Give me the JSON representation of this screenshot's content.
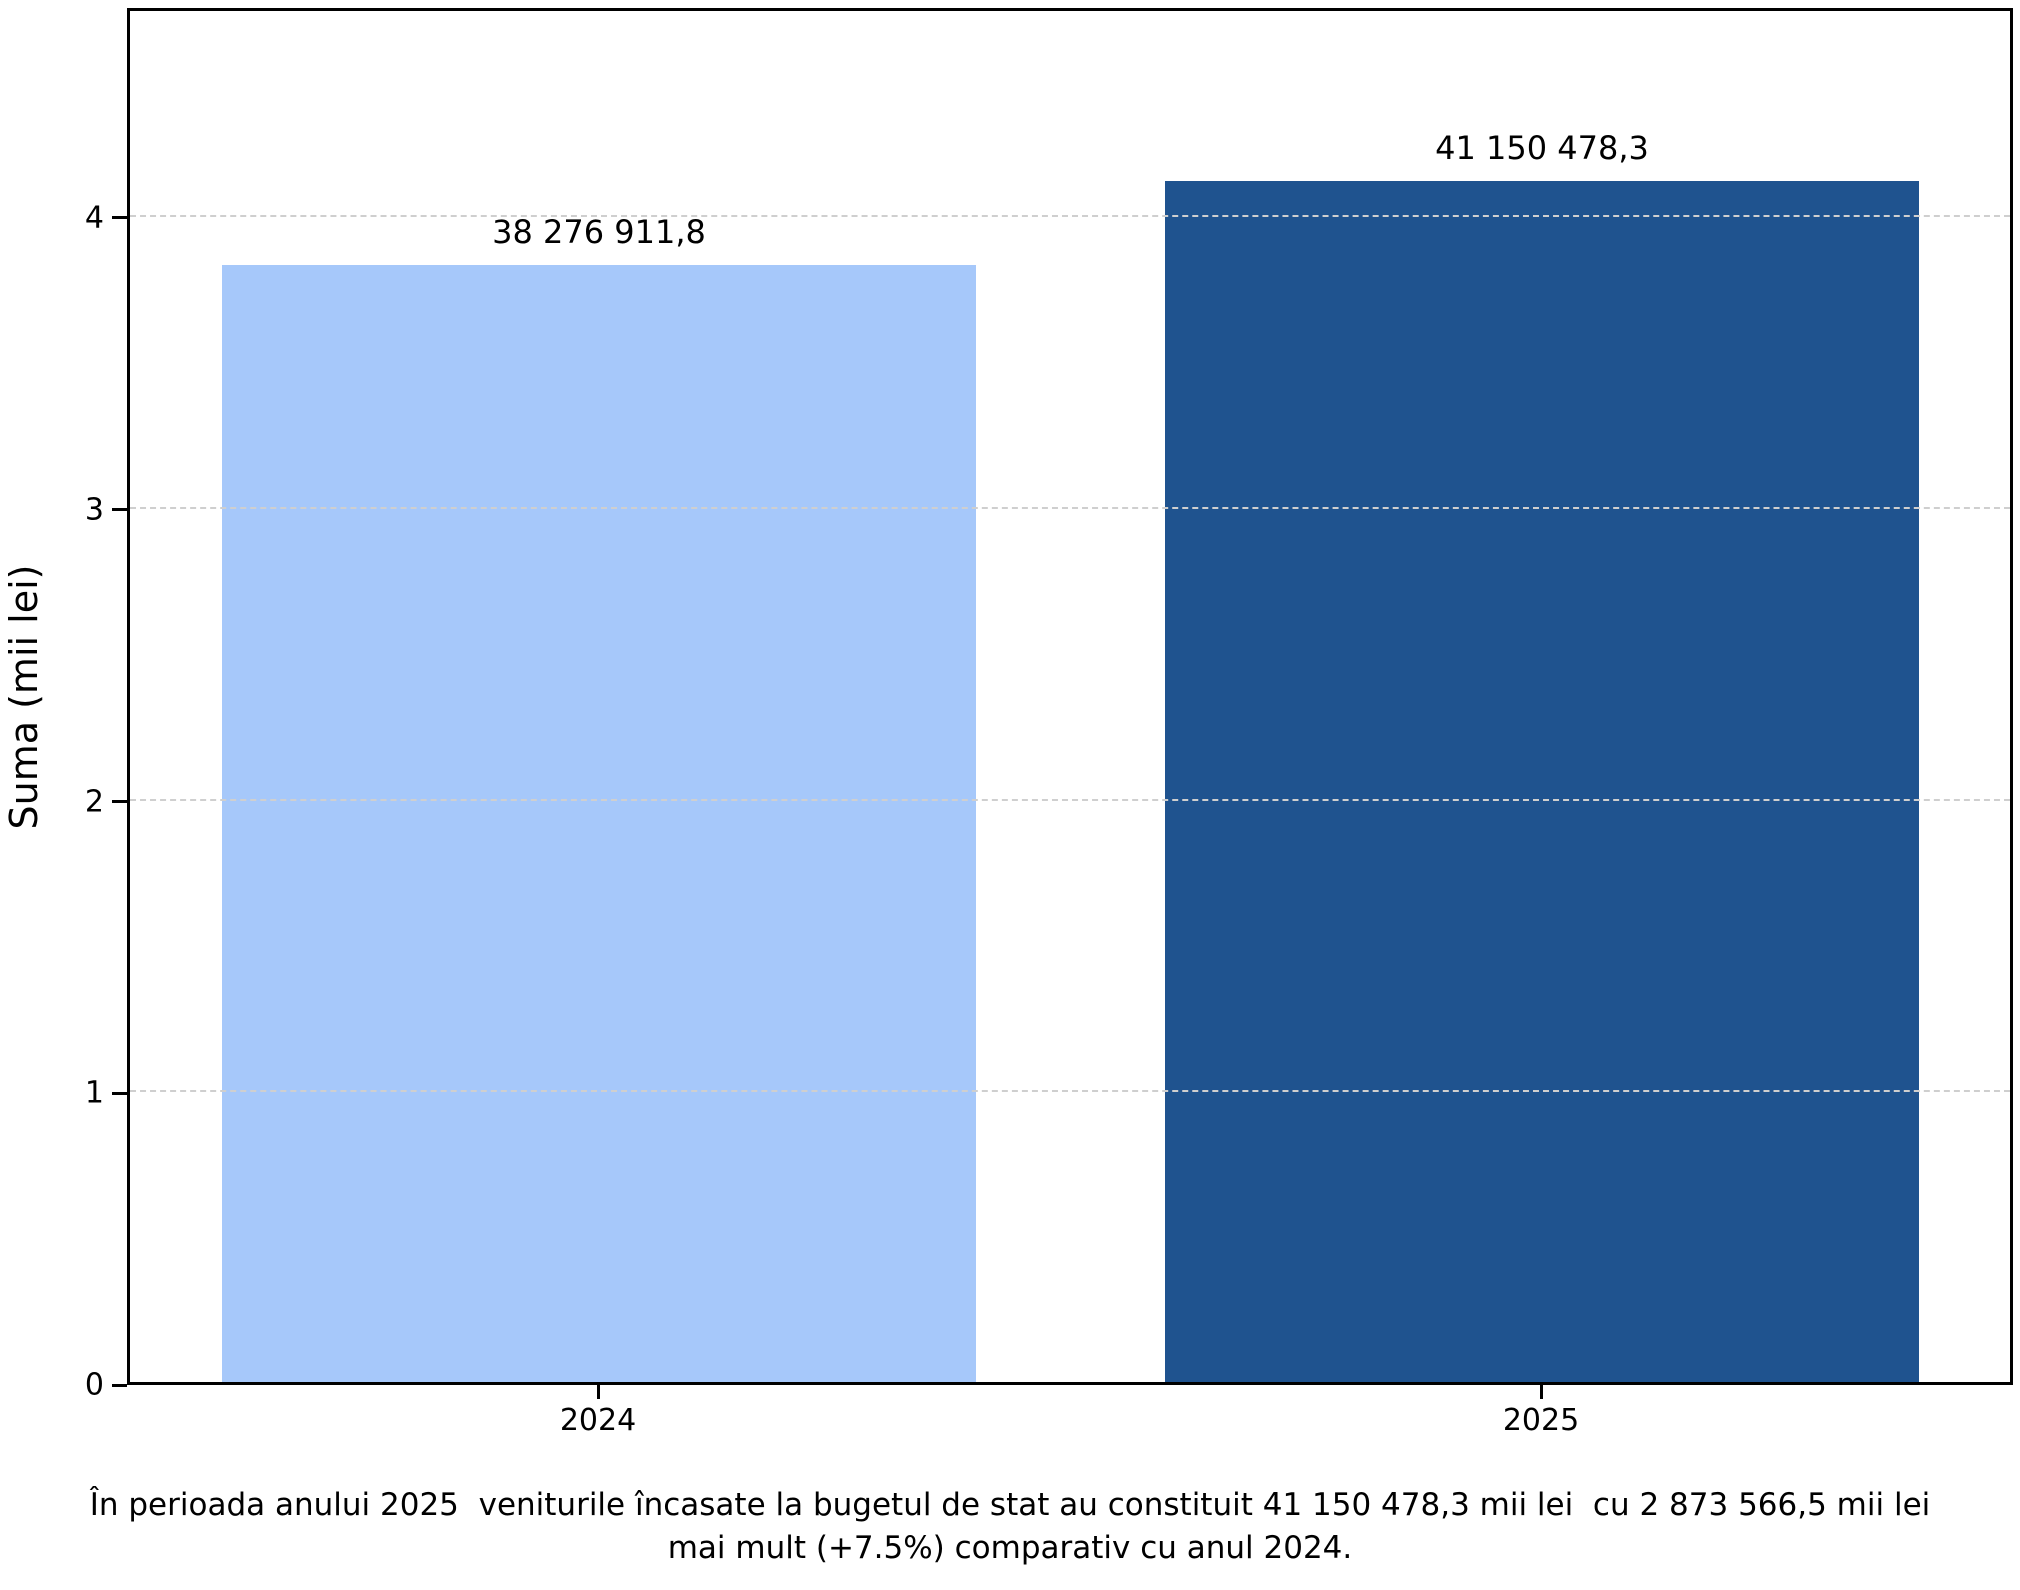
{
  "y_axis": {
    "label": "Suma (mii lei)",
    "ticks": [
      "0",
      "1",
      "2",
      "3",
      "4"
    ]
  },
  "x_axis": {
    "ticks": [
      "2024",
      "2025"
    ]
  },
  "caption": {
    "line1": "În perioada anului 2025  veniturile încasate la bugetul de stat au constituit 41 150 478,3 mii lei  cu 2 873 566,5 mii lei",
    "line2": "mai mult (+7.5%) comparativ cu anul 2024."
  },
  "colors": {
    "bar_2024": "#a6c8fa",
    "bar_2025": "#1f538f",
    "grid": "#cfcfcf",
    "spine": "#000000"
  },
  "chart_data": {
    "type": "bar",
    "categories": [
      "2024",
      "2025"
    ],
    "values": [
      38276911.8,
      41150478.3
    ],
    "bar_labels": [
      "38 276 911,8",
      "41 150 478,3"
    ],
    "series_colors": [
      "#a6c8fa",
      "#1f538f"
    ],
    "title": "",
    "xlabel": "",
    "ylabel": "Suma (mii lei)",
    "ytick_labels": [
      "0",
      "1",
      "2",
      "3",
      "4"
    ],
    "ytick_axis_units": [
      0,
      1,
      2,
      3,
      4
    ],
    "axis_unit_scale": 10000000,
    "ylim_axis_units": [
      0,
      4.72
    ],
    "grid": "horizontal dashed, drawn over bars",
    "legend": "none",
    "bar_width_fraction": 0.8
  }
}
